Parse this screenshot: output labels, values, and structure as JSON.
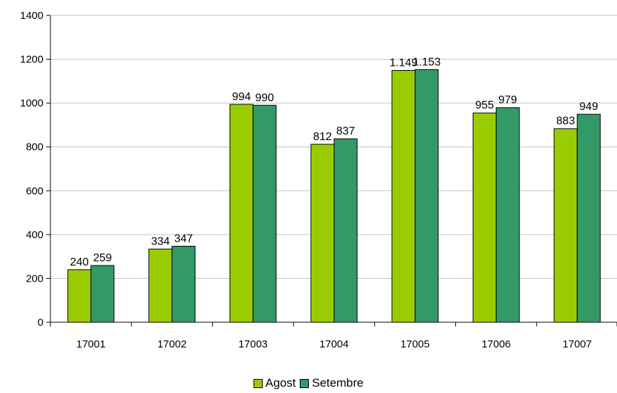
{
  "chart_data": {
    "type": "bar",
    "title": "",
    "xlabel": "",
    "ylabel": "",
    "categories": [
      "17001",
      "17002",
      "17003",
      "17004",
      "17005",
      "17006",
      "17007"
    ],
    "series": [
      {
        "name": "Agost",
        "color": "#99CC00",
        "values": [
          240,
          334,
          994,
          812,
          1149,
          955,
          883
        ],
        "labels": [
          "240",
          "334",
          "994",
          "812",
          "1.149",
          "955",
          "883"
        ]
      },
      {
        "name": "Setembre",
        "color": "#339966",
        "values": [
          259,
          347,
          990,
          837,
          1153,
          979,
          949
        ],
        "labels": [
          "259",
          "347",
          "990",
          "837",
          "1.153",
          "979",
          "949"
        ]
      }
    ],
    "ylim": [
      0,
      1400
    ],
    "yticks": [
      0,
      200,
      400,
      600,
      800,
      1000,
      1200,
      1400
    ],
    "ytick_labels": [
      "0",
      "200",
      "400",
      "600",
      "800",
      "1000",
      "1200",
      "1400"
    ],
    "grid": true,
    "legend_position": "bottom"
  }
}
